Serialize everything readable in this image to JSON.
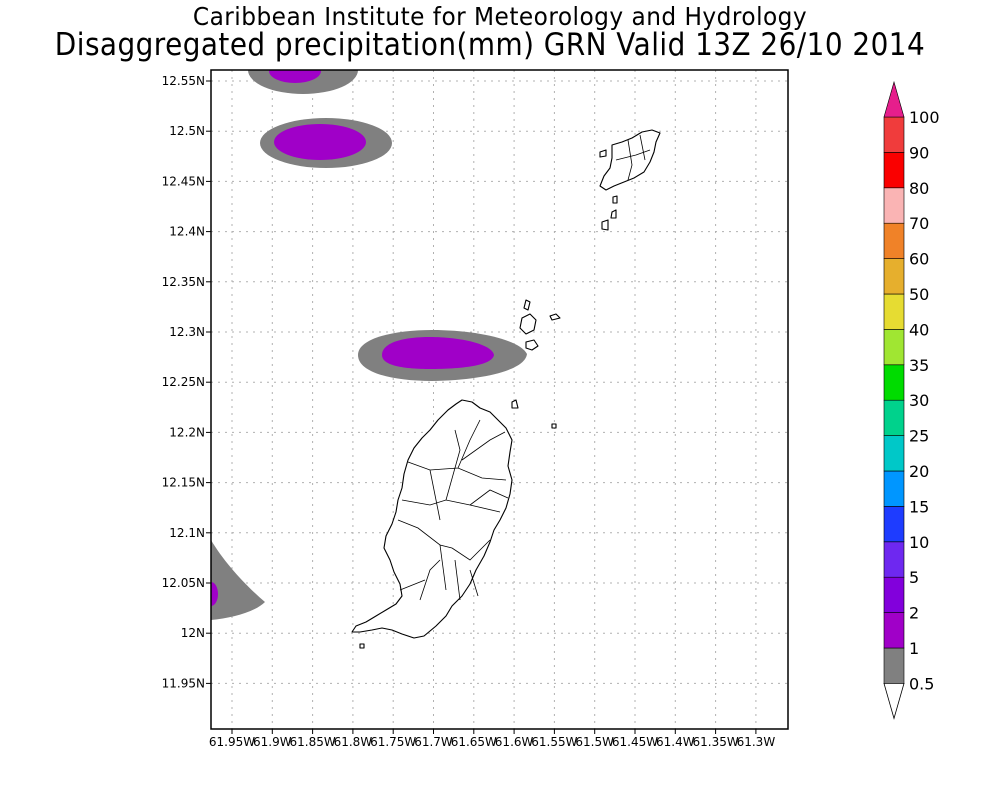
{
  "header": {
    "title_line1": "Caribbean Institute for Meteorology and Hydrology",
    "title_line2": "Disaggregated precipitation(mm) GRN Valid 13Z 26/10 2014"
  },
  "map": {
    "lat_ticks": [
      "12.55N",
      "12.5N",
      "12.45N",
      "12.4N",
      "12.35N",
      "12.3N",
      "12.25N",
      "12.2N",
      "12.15N",
      "12.1N",
      "12.05N",
      "12N",
      "11.95N"
    ],
    "lon_ticks": [
      "61.95W",
      "61.9W",
      "61.85W",
      "61.8W",
      "61.75W",
      "61.7W",
      "61.65W",
      "61.6W",
      "61.55W",
      "61.5W",
      "61.45W",
      "61.4W",
      "61.35W",
      "61.3W"
    ],
    "precip_levels": [
      {
        "level": "0.5-1",
        "color": "#808080"
      },
      {
        "level": "1-2",
        "color": "#a000c8"
      }
    ]
  },
  "colorbar": {
    "labels": [
      "0.5",
      "1",
      "2",
      "5",
      "10",
      "15",
      "20",
      "25",
      "30",
      "35",
      "40",
      "50",
      "60",
      "70",
      "80",
      "90",
      "100"
    ],
    "colors": [
      "#808080",
      "#a000c8",
      "#8200dc",
      "#6e28f0",
      "#1e3cff",
      "#0096ff",
      "#00c8c8",
      "#00d28c",
      "#00dc00",
      "#a0e632",
      "#e6dc32",
      "#e6af2d",
      "#f08228",
      "#fab4b4",
      "#fa0000",
      "#f03c3c",
      "#e61e8c"
    ]
  }
}
